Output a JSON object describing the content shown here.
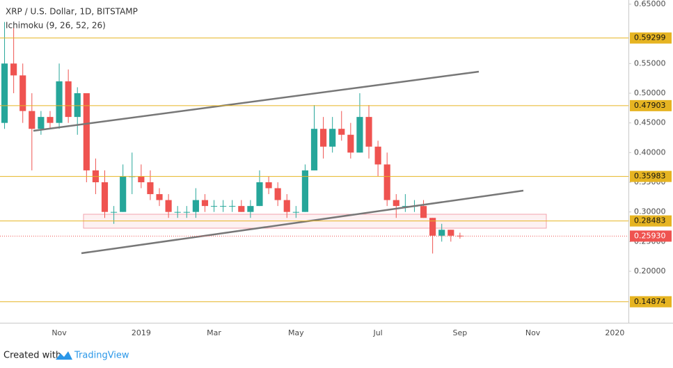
{
  "chart_data": {
    "type": "candlestick",
    "title": "XRP / U.S. Dollar, 1D, BITSTAMP",
    "subtitle": "Ichimoku (9, 26, 52, 26)",
    "footer": {
      "text": "Created with",
      "brand": "TradingView"
    },
    "categories": [
      null,
      null,
      null,
      null,
      null,
      null,
      "Nov",
      null,
      null,
      null,
      null,
      null,
      null,
      null,
      null,
      "2019",
      null,
      null,
      null,
      null,
      null,
      null,
      null,
      "Mar",
      null,
      null,
      null,
      null,
      null,
      null,
      null,
      null,
      "May",
      null,
      null,
      null,
      null,
      null,
      null,
      null,
      null,
      "Jul",
      null,
      null,
      null,
      null,
      null,
      null,
      null,
      null,
      "Sep",
      null,
      null,
      null,
      null,
      null,
      null,
      null,
      "Nov",
      null,
      null,
      null,
      null,
      null,
      null,
      null,
      null,
      "2020",
      null
    ],
    "open": [
      0.45,
      0.55,
      0.53,
      0.47,
      0.44,
      0.46,
      0.45,
      0.52,
      0.46,
      0.5,
      0.37,
      0.35,
      0.3,
      0.3,
      0.36,
      0.36,
      0.35,
      0.33,
      0.32,
      0.3,
      0.3,
      0.3,
      0.32,
      0.31,
      0.31,
      0.31,
      0.31,
      0.3,
      0.31,
      0.35,
      0.34,
      0.32,
      0.3,
      0.3,
      0.37,
      0.44,
      0.41,
      0.44,
      0.43,
      0.4,
      0.46,
      0.41,
      0.38,
      0.32,
      0.31,
      0.31,
      0.31,
      0.29,
      0.26,
      0.27,
      0.26,
      null,
      null,
      null,
      null,
      null,
      null,
      null,
      null,
      null,
      null,
      null,
      null,
      null,
      null,
      null,
      null,
      null,
      null
    ],
    "high": [
      0.62,
      0.61,
      0.55,
      0.5,
      0.47,
      0.47,
      0.55,
      0.54,
      0.51,
      0.5,
      0.39,
      0.37,
      0.31,
      0.38,
      0.4,
      0.38,
      0.37,
      0.34,
      0.33,
      0.31,
      0.31,
      0.34,
      0.33,
      0.32,
      0.32,
      0.32,
      0.32,
      0.32,
      0.37,
      0.36,
      0.35,
      0.33,
      0.31,
      0.38,
      0.48,
      0.46,
      0.46,
      0.47,
      0.45,
      0.5,
      0.48,
      0.42,
      0.4,
      0.33,
      0.33,
      0.32,
      0.32,
      0.29,
      0.28,
      0.27,
      0.265,
      null,
      null,
      null,
      null,
      null,
      null,
      null,
      null,
      null,
      null,
      null,
      null,
      null,
      null,
      null,
      null,
      null,
      null
    ],
    "low": [
      0.44,
      0.5,
      0.45,
      0.37,
      0.43,
      0.44,
      0.44,
      0.45,
      0.43,
      0.35,
      0.33,
      0.29,
      0.28,
      0.3,
      0.33,
      0.34,
      0.32,
      0.31,
      0.29,
      0.29,
      0.29,
      0.29,
      0.3,
      0.3,
      0.3,
      0.3,
      0.3,
      0.29,
      0.31,
      0.33,
      0.31,
      0.29,
      0.29,
      0.3,
      0.37,
      0.39,
      0.4,
      0.42,
      0.39,
      0.4,
      0.39,
      0.36,
      0.31,
      0.29,
      0.3,
      0.3,
      0.29,
      0.23,
      0.25,
      0.25,
      0.255,
      null,
      null,
      null,
      null,
      null,
      null,
      null,
      null,
      null,
      null,
      null,
      null,
      null,
      null,
      null,
      null,
      null,
      null
    ],
    "close": [
      0.55,
      0.53,
      0.47,
      0.44,
      0.46,
      0.45,
      0.52,
      0.46,
      0.5,
      0.37,
      0.35,
      0.3,
      0.3,
      0.36,
      0.36,
      0.35,
      0.33,
      0.32,
      0.3,
      0.3,
      0.3,
      0.32,
      0.31,
      0.31,
      0.31,
      0.31,
      0.3,
      0.31,
      0.35,
      0.34,
      0.32,
      0.3,
      0.3,
      0.37,
      0.44,
      0.41,
      0.44,
      0.43,
      0.4,
      0.46,
      0.41,
      0.38,
      0.32,
      0.31,
      0.31,
      0.31,
      0.29,
      0.26,
      0.27,
      0.26,
      0.2593,
      null,
      null,
      null,
      null,
      null,
      null,
      null,
      null,
      null,
      null,
      null,
      null,
      null,
      null,
      null,
      null,
      null,
      null
    ],
    "up_color": "#26a69a",
    "down_color": "#ef5350",
    "ylim": [
      0.1133,
      0.657
    ],
    "yticks": [
      {
        "value": 0.65,
        "label": "0.65000"
      },
      {
        "value": 0.55,
        "label": "0.55000"
      },
      {
        "value": 0.5,
        "label": "0.50000"
      },
      {
        "value": 0.45,
        "label": "0.45000"
      },
      {
        "value": 0.4,
        "label": "0.40000"
      },
      {
        "value": 0.35,
        "label": "0.35000"
      },
      {
        "value": 0.3,
        "label": "0.30000"
      },
      {
        "value": 0.25,
        "label": "0.25000"
      },
      {
        "value": 0.2,
        "label": "0.20000"
      }
    ],
    "levels": [
      0.59299,
      0.47903,
      0.35983,
      0.28483,
      0.14874
    ],
    "level_color": "#e6b422",
    "last_price": {
      "value": 0.2593,
      "label": "0.25930"
    },
    "last_price_color": "#ef5350"
  }
}
